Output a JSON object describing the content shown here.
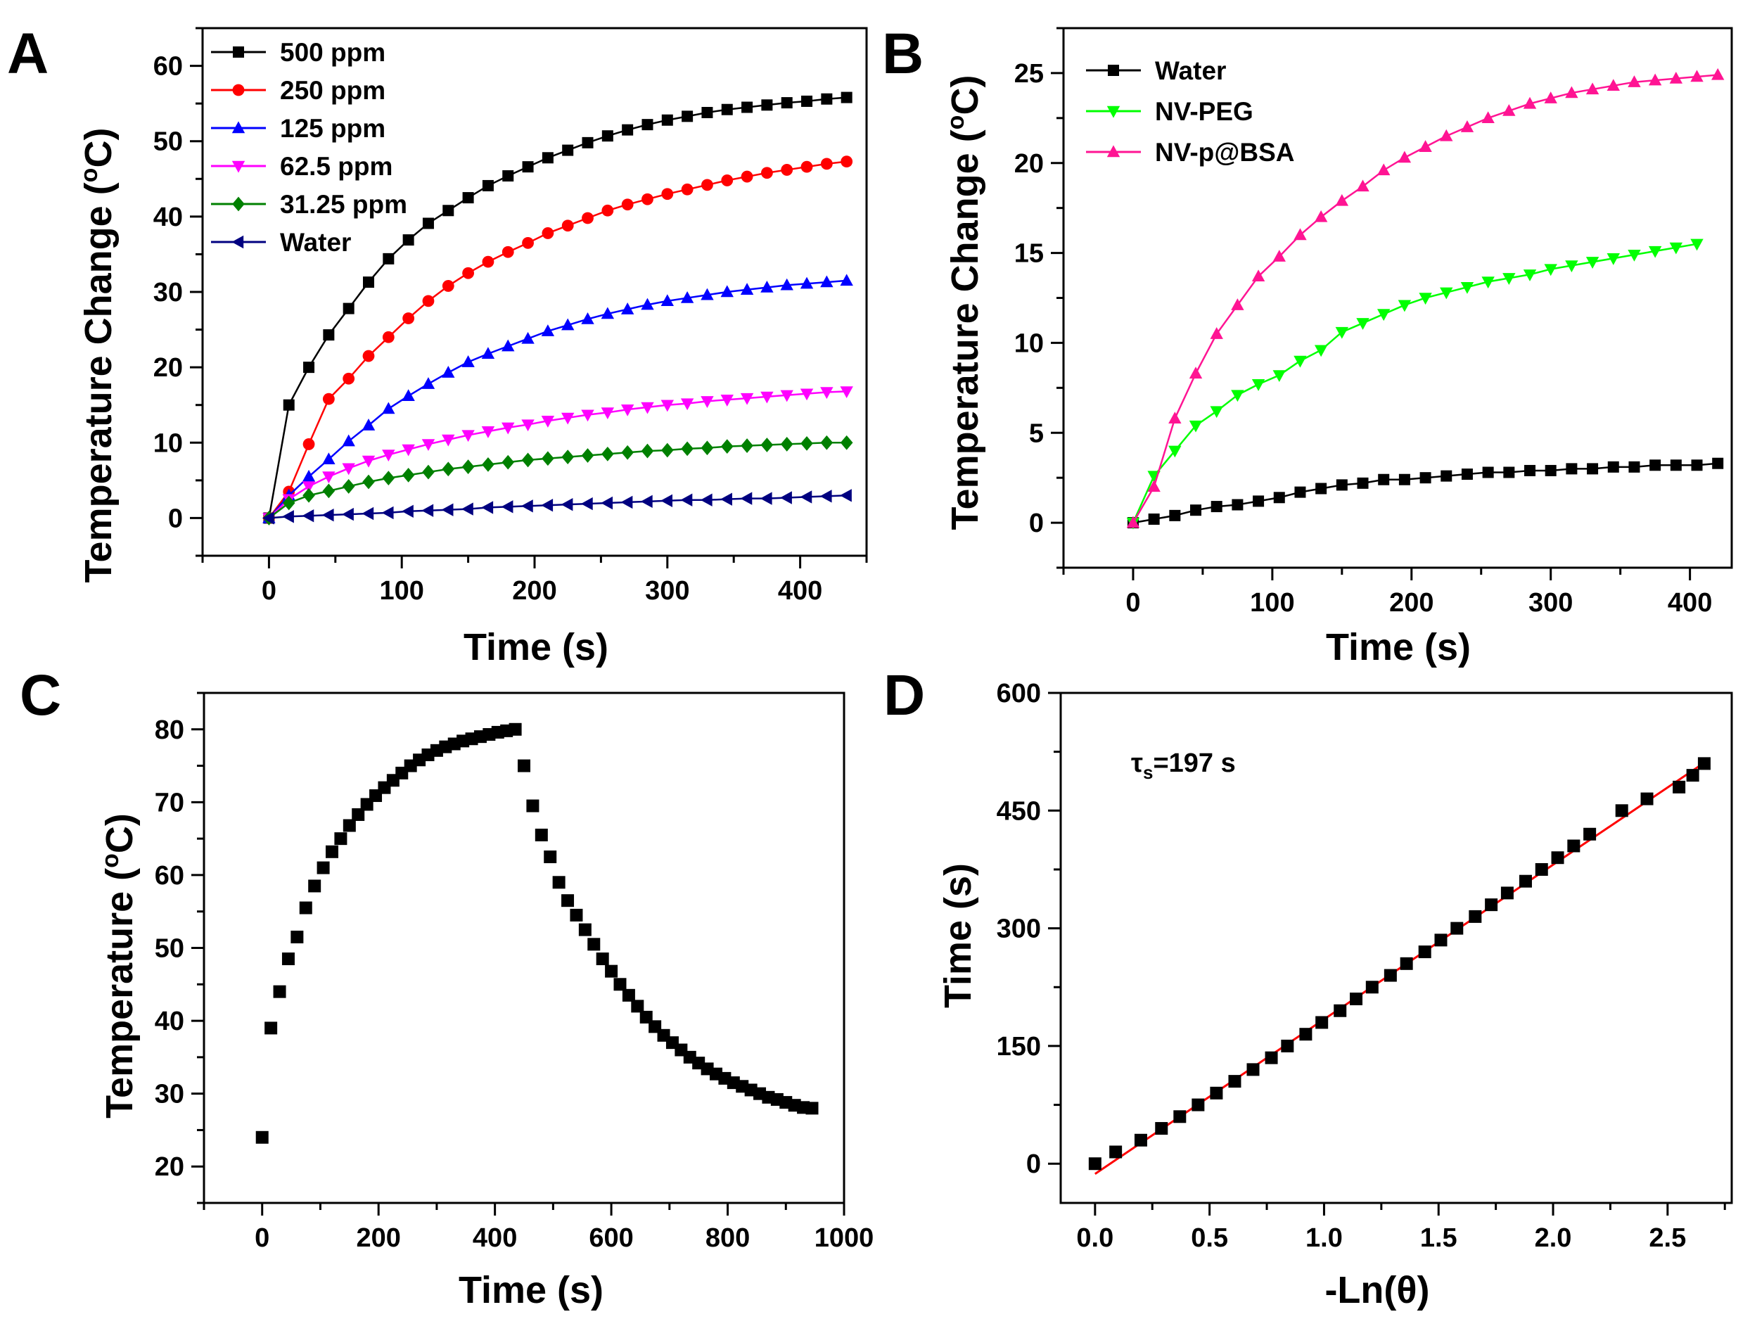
{
  "chart_data": [
    {
      "panel": "A",
      "type": "line",
      "xlabel": "Time (s)",
      "ylabel": "Temperature Change (°C)",
      "xlim": [
        -50,
        450
      ],
      "ylim": [
        -5,
        65
      ],
      "xticks": [
        0,
        100,
        200,
        300,
        400
      ],
      "yticks": [
        0,
        10,
        20,
        30,
        40,
        50,
        60
      ],
      "legend_position": "top-left",
      "x": [
        0,
        15,
        30,
        45,
        60,
        75,
        90,
        105,
        120,
        135,
        150,
        165,
        180,
        195,
        210,
        225,
        240,
        255,
        270,
        285,
        300,
        315,
        330,
        345,
        360,
        375,
        390,
        405,
        420,
        435
      ],
      "series": [
        {
          "name": "500 ppm",
          "color": "#000000",
          "marker": "square",
          "values": [
            0,
            15,
            20,
            24.3,
            27.8,
            31.3,
            34.4,
            36.9,
            39.1,
            40.8,
            42.5,
            44.1,
            45.4,
            46.6,
            47.8,
            48.8,
            49.8,
            50.7,
            51.5,
            52.2,
            52.8,
            53.3,
            53.8,
            54.2,
            54.5,
            54.8,
            55.1,
            55.3,
            55.6,
            55.8
          ]
        },
        {
          "name": "250 ppm",
          "color": "#ff0000",
          "marker": "circle",
          "values": [
            0,
            3.5,
            9.8,
            15.8,
            18.5,
            21.5,
            24.0,
            26.5,
            28.8,
            30.8,
            32.5,
            34.0,
            35.3,
            36.5,
            37.8,
            38.8,
            39.8,
            40.8,
            41.6,
            42.3,
            43.0,
            43.6,
            44.2,
            44.8,
            45.3,
            45.8,
            46.2,
            46.6,
            47.0,
            47.3
          ]
        },
        {
          "name": "125 ppm",
          "color": "#0000ff",
          "marker": "triangle-up",
          "values": [
            0,
            3.0,
            5.5,
            7.8,
            10.2,
            12.3,
            14.5,
            16.2,
            17.8,
            19.3,
            20.7,
            21.8,
            22.8,
            23.8,
            24.8,
            25.6,
            26.4,
            27.1,
            27.7,
            28.3,
            28.8,
            29.2,
            29.6,
            30.0,
            30.3,
            30.6,
            30.9,
            31.1,
            31.3,
            31.5
          ]
        },
        {
          "name": "62.5 ppm",
          "color": "#ff00ff",
          "marker": "triangle-down",
          "values": [
            0,
            2.5,
            4.2,
            5.5,
            6.6,
            7.6,
            8.4,
            9.1,
            9.8,
            10.4,
            11.0,
            11.5,
            12.0,
            12.4,
            12.9,
            13.3,
            13.7,
            14.0,
            14.4,
            14.7,
            15.0,
            15.2,
            15.5,
            15.7,
            15.9,
            16.1,
            16.3,
            16.5,
            16.7,
            16.8
          ]
        },
        {
          "name": "31.25 ppm",
          "color": "#008000",
          "marker": "diamond",
          "values": [
            0,
            2.0,
            3.0,
            3.6,
            4.2,
            4.8,
            5.3,
            5.7,
            6.1,
            6.5,
            6.8,
            7.1,
            7.4,
            7.7,
            7.9,
            8.1,
            8.3,
            8.5,
            8.7,
            8.9,
            9.0,
            9.2,
            9.3,
            9.5,
            9.6,
            9.7,
            9.8,
            9.9,
            10.0,
            10.0
          ]
        },
        {
          "name": "Water",
          "color": "#000080",
          "marker": "triangle-left",
          "values": [
            0,
            0.2,
            0.3,
            0.4,
            0.5,
            0.6,
            0.7,
            0.9,
            1.0,
            1.1,
            1.2,
            1.4,
            1.5,
            1.6,
            1.7,
            1.8,
            1.9,
            2.0,
            2.1,
            2.2,
            2.3,
            2.4,
            2.4,
            2.5,
            2.6,
            2.6,
            2.7,
            2.8,
            2.9,
            3.0
          ]
        }
      ]
    },
    {
      "panel": "B",
      "type": "line",
      "xlabel": "Time (s)",
      "ylabel": "Temperature Change (°C)",
      "xlim": [
        -50,
        430
      ],
      "ylim": [
        -2.5,
        27.5
      ],
      "xticks": [
        0,
        100,
        200,
        300,
        400
      ],
      "yticks": [
        0,
        5,
        10,
        15,
        20,
        25
      ],
      "legend_position": "top-left",
      "series": [
        {
          "name": "Water",
          "color": "#000000",
          "marker": "square",
          "x": [
            0,
            15,
            30,
            45,
            60,
            75,
            90,
            105,
            120,
            135,
            150,
            165,
            180,
            195,
            210,
            225,
            240,
            255,
            270,
            285,
            300,
            315,
            330,
            345,
            360,
            375,
            390,
            405,
            420
          ],
          "values": [
            0,
            0.2,
            0.4,
            0.7,
            0.9,
            1.0,
            1.2,
            1.4,
            1.7,
            1.9,
            2.1,
            2.2,
            2.4,
            2.4,
            2.5,
            2.6,
            2.7,
            2.8,
            2.8,
            2.9,
            2.9,
            3.0,
            3.0,
            3.1,
            3.1,
            3.2,
            3.2,
            3.2,
            3.3
          ]
        },
        {
          "name": "NV-PEG",
          "color": "#00ff00",
          "marker": "triangle-down",
          "x": [
            0,
            15,
            30,
            45,
            60,
            75,
            90,
            105,
            120,
            135,
            150,
            165,
            180,
            195,
            210,
            225,
            240,
            255,
            270,
            285,
            300,
            315,
            330,
            345,
            360,
            375,
            390,
            405
          ],
          "values": [
            0,
            2.6,
            4.0,
            5.4,
            6.2,
            7.1,
            7.7,
            8.2,
            9.0,
            9.6,
            10.6,
            11.1,
            11.6,
            12.1,
            12.5,
            12.8,
            13.1,
            13.4,
            13.6,
            13.8,
            14.1,
            14.3,
            14.5,
            14.7,
            14.9,
            15.1,
            15.3,
            15.5
          ]
        },
        {
          "name": "NV-p@BSA",
          "color": "#ff1493",
          "marker": "triangle-up",
          "x": [
            0,
            15,
            30,
            45,
            60,
            75,
            90,
            105,
            120,
            135,
            150,
            165,
            180,
            195,
            210,
            225,
            240,
            255,
            270,
            285,
            300,
            315,
            330,
            345,
            360,
            375,
            390,
            405,
            420
          ],
          "values": [
            0,
            2.0,
            5.8,
            8.3,
            10.5,
            12.1,
            13.7,
            14.8,
            16.0,
            17.0,
            17.9,
            18.7,
            19.6,
            20.3,
            20.9,
            21.5,
            22.0,
            22.5,
            22.9,
            23.3,
            23.6,
            23.9,
            24.1,
            24.3,
            24.5,
            24.6,
            24.7,
            24.8,
            24.9
          ]
        }
      ]
    },
    {
      "panel": "C",
      "type": "scatter",
      "xlabel": "Time (s)",
      "ylabel": "Temperature (°C)",
      "xlim": [
        -100,
        1000
      ],
      "ylim": [
        15,
        85
      ],
      "xticks": [
        0,
        200,
        400,
        600,
        800,
        1000
      ],
      "yticks": [
        20,
        30,
        40,
        50,
        60,
        70,
        80
      ],
      "series": [
        {
          "name": "Temperature",
          "color": "#000000",
          "marker": "square",
          "x": [
            0,
            15,
            30,
            45,
            60,
            75,
            90,
            105,
            120,
            135,
            150,
            165,
            180,
            195,
            210,
            225,
            240,
            255,
            270,
            285,
            300,
            315,
            330,
            345,
            360,
            375,
            390,
            405,
            420,
            435,
            450,
            465,
            480,
            495,
            510,
            525,
            540,
            555,
            570,
            585,
            600,
            615,
            630,
            645,
            660,
            675,
            690,
            705,
            720,
            735,
            750,
            765,
            780,
            795,
            810,
            825,
            840,
            855,
            870,
            885,
            900,
            915,
            930,
            945
          ],
          "values": [
            24,
            39,
            44,
            48.5,
            51.5,
            55.5,
            58.5,
            61,
            63.2,
            65,
            66.8,
            68.3,
            69.7,
            70.9,
            72,
            73,
            74,
            75,
            75.8,
            76.5,
            77.1,
            77.6,
            78,
            78.4,
            78.7,
            79,
            79.3,
            79.6,
            79.8,
            80,
            75,
            69.5,
            65.5,
            62.5,
            59,
            56.5,
            54.5,
            52.5,
            50.5,
            48.5,
            46.8,
            45,
            43.5,
            42,
            40.5,
            39.2,
            38,
            37,
            36,
            35,
            34.2,
            33.4,
            32.7,
            32.1,
            31.5,
            31,
            30.5,
            30,
            29.5,
            29.2,
            28.8,
            28.4,
            28.1,
            28
          ]
        }
      ]
    },
    {
      "panel": "D",
      "type": "scatter",
      "xlabel": "-Ln(θ)",
      "ylabel": "Time (s)",
      "xlim": [
        -0.15,
        2.78
      ],
      "ylim": [
        -50,
        600
      ],
      "xticks": [
        0.0,
        0.5,
        1.0,
        1.5,
        2.0,
        2.5
      ],
      "xtick_labels": [
        "0.0",
        "0.5",
        "1.0",
        "1.5",
        "2.0",
        "2.5"
      ],
      "yticks": [
        0,
        150,
        300,
        450,
        600
      ],
      "annotation": {
        "symbol": "τ",
        "subscript": "s",
        "text": "=197 s"
      },
      "fit_line": {
        "color": "#ff0000",
        "x": [
          0,
          2.67
        ],
        "y": [
          -13,
          513
        ]
      },
      "series": [
        {
          "name": "Time",
          "color": "#000000",
          "marker": "square",
          "x": [
            0,
            0.09,
            0.2,
            0.29,
            0.37,
            0.45,
            0.53,
            0.61,
            0.69,
            0.77,
            0.84,
            0.92,
            0.99,
            1.07,
            1.14,
            1.21,
            1.29,
            1.36,
            1.44,
            1.51,
            1.58,
            1.66,
            1.73,
            1.8,
            1.88,
            1.95,
            2.02,
            2.09,
            2.16,
            2.3,
            2.41,
            2.55,
            2.61,
            2.66
          ],
          "values": [
            0,
            15,
            30,
            45,
            60,
            75,
            90,
            105,
            120,
            135,
            150,
            165,
            180,
            195,
            210,
            225,
            240,
            255,
            270,
            285,
            300,
            315,
            330,
            345,
            360,
            375,
            390,
            405,
            420,
            450,
            465,
            480,
            495,
            510
          ]
        }
      ]
    }
  ],
  "panels": {
    "a": {
      "letter": "A",
      "xlabel": "Time (s)",
      "ylabel_main": "Temperature Change (",
      "ylabel_deg": "o",
      "ylabel_unit": "C)"
    },
    "b": {
      "letter": "B",
      "xlabel": "Time (s)",
      "ylabel_main": "Temperature Change (",
      "ylabel_deg": "o",
      "ylabel_unit": "C)"
    },
    "c": {
      "letter": "C",
      "xlabel": "Time (s)",
      "ylabel_main": "Temperature (",
      "ylabel_deg": "o",
      "ylabel_unit": "C)"
    },
    "d": {
      "letter": "D",
      "xlabel": "-Ln(θ)",
      "ylabel_main": "Time (s)",
      "ylabel_deg": "",
      "ylabel_unit": ""
    }
  }
}
